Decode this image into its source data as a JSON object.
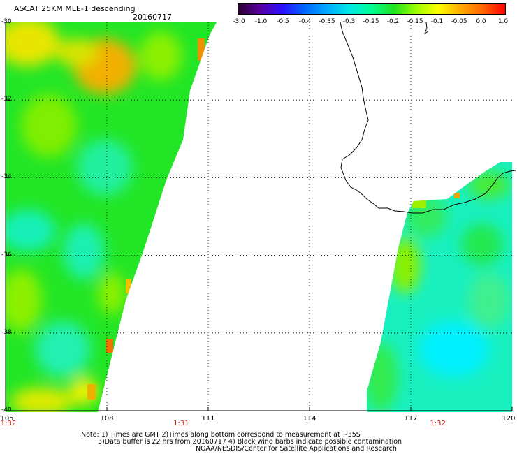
{
  "title": "ASCAT 25KM MLE-1 descending",
  "date": "20160717",
  "colorbar": {
    "labels": [
      "-3.0",
      "-1.0",
      "-0.5",
      "-0.4",
      "-0.35",
      "-0.3",
      "-0.25",
      "-0.2",
      "-0.15",
      "-0.1",
      "-0.05",
      "0.0",
      "1.0"
    ],
    "colors": [
      "#2a0030",
      "#5a00a0",
      "#2a10ff",
      "#0066ff",
      "#00aaff",
      "#00e8e8",
      "#00ff90",
      "#20e020",
      "#9aff00",
      "#ffff00",
      "#ffaa00",
      "#ff6600",
      "#ff0000"
    ]
  },
  "map": {
    "lat_labels": [
      "-30",
      "-32",
      "-34",
      "-36",
      "-38",
      "-40"
    ],
    "lon_labels": [
      "105",
      "108",
      "111",
      "114",
      "117",
      "120"
    ],
    "time_labels": [
      {
        "text": "1:32",
        "lon": 105
      },
      {
        "text": "1:31",
        "lon": 110.2
      },
      {
        "text": "1:32",
        "lon": 117.8
      }
    ],
    "colors": {
      "swath_green": "#22e825",
      "swath_lime": "#7ff000",
      "swath_yellow": "#e6e400",
      "swath_orange": "#f0a000",
      "swath_cyan": "#10f0c8",
      "coast": "#000000",
      "grid": "#000000"
    }
  },
  "notes": [
    "Note: 1) Times are GMT 2)Times along bottom correspond to measurement at ~35S",
    "3)Data buffer is 22 hrs from 20160717 4) Black wind barbs indicate possible contamination",
    "NOAA/NESDIS/Center for Satellite Applications and Research"
  ]
}
